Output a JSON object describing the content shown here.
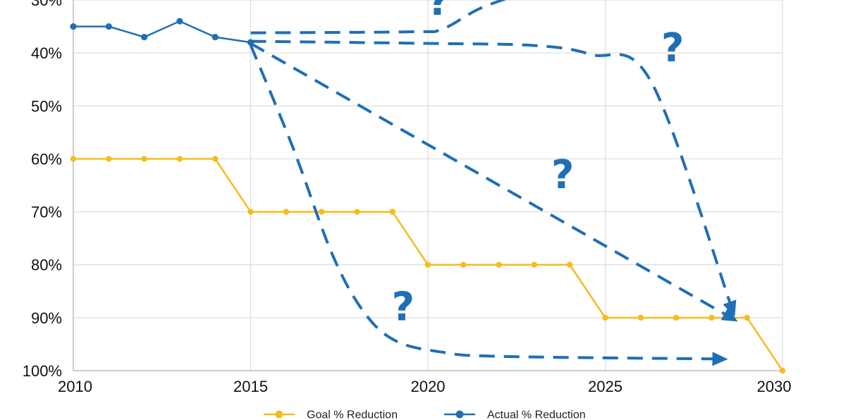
{
  "colors": {
    "goal": "#F5BC1C",
    "actual": "#1F6FB5",
    "grid": "#DDDDDD",
    "axis": "#BBBBBB"
  },
  "chart_data": {
    "type": "line",
    "x_ticks": [
      2010,
      2015,
      2020,
      2025,
      2030
    ],
    "x_tick_labels": [
      "2010",
      "2015",
      "2020",
      "2025",
      "2030"
    ],
    "y_ticks": [
      30,
      40,
      50,
      60,
      70,
      80,
      90,
      100
    ],
    "y_tick_labels": [
      "30%",
      "40%",
      "50%",
      "60%",
      "70%",
      "80%",
      "90%",
      "100%"
    ],
    "xlim": [
      2010,
      2030
    ],
    "ylim": [
      30,
      100
    ],
    "y_inverted": true,
    "grid": true,
    "legend": "bottom",
    "series": [
      {
        "name": "Goal % Reduction",
        "color": "#F5BC1C",
        "x": [
          2010,
          2011,
          2012,
          2013,
          2014,
          2015,
          2016,
          2017,
          2018,
          2019,
          2020,
          2021,
          2022,
          2023,
          2024,
          2025,
          2026,
          2027,
          2028,
          2029,
          2030
        ],
        "y": [
          60,
          60,
          60,
          60,
          60,
          70,
          70,
          70,
          70,
          70,
          80,
          80,
          80,
          80,
          80,
          90,
          90,
          90,
          90,
          90,
          100
        ]
      },
      {
        "name": "Actual % Reduction",
        "color": "#1F6FB5",
        "x": [
          2010,
          2011,
          2012,
          2013,
          2014,
          2015
        ],
        "y": [
          35,
          35,
          37,
          34,
          37,
          38
        ]
      }
    ],
    "annotations": [
      {
        "type": "dashed-projection",
        "points": [
          [
            2015,
            36.2
          ],
          [
            2019.5,
            36
          ],
          [
            2020.4,
            35.5
          ],
          [
            2021.5,
            31.5
          ],
          [
            2023,
            28
          ]
        ],
        "arrow": false
      },
      {
        "type": "dashed-projection",
        "points": [
          [
            2015,
            37.8
          ],
          [
            2020,
            38.2
          ],
          [
            2023,
            38.6
          ],
          [
            2024.6,
            40.3
          ],
          [
            2026.3,
            45.5
          ],
          [
            2028.6,
            88.8
          ]
        ],
        "arrow": true
      },
      {
        "type": "dashed-projection",
        "points": [
          [
            2015,
            38.2
          ],
          [
            2028.6,
            90.2
          ]
        ],
        "arrow": true
      },
      {
        "type": "dashed-projection",
        "points": [
          [
            2015,
            38.5
          ],
          [
            2016.2,
            58
          ],
          [
            2017.3,
            78
          ],
          [
            2018.2,
            89
          ],
          [
            2019.1,
            94.4
          ],
          [
            2020.4,
            96.5
          ],
          [
            2022,
            97.3
          ],
          [
            2028.3,
            97.8
          ]
        ],
        "arrow": true
      },
      {
        "type": "question-mark",
        "text": "?",
        "x": 2020.3,
        "y": 32.8
      },
      {
        "type": "question-mark",
        "text": "?",
        "x": 2026.9,
        "y": 41.6
      },
      {
        "type": "question-mark",
        "text": "?",
        "x": 2023.8,
        "y": 65.5
      },
      {
        "type": "question-mark",
        "text": "?",
        "x": 2019.3,
        "y": 90.5
      }
    ]
  }
}
